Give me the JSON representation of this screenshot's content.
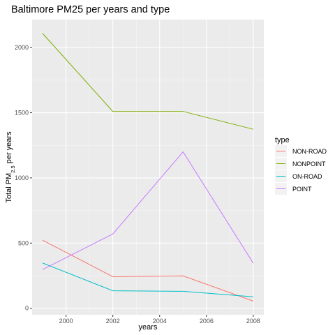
{
  "chart_data": {
    "type": "line",
    "title": "Baltimore PM25 per years and type",
    "xlabel": "years",
    "ylabel": {
      "prefix": "Total PM",
      "subscript": "2.5",
      "suffix": " per years"
    },
    "x": [
      1999,
      2002,
      2005,
      2008
    ],
    "xticks": [
      2000,
      2002,
      2004,
      2006,
      2008
    ],
    "yticks": [
      0,
      500,
      1000,
      1500,
      2000
    ],
    "xlim": [
      1998.55,
      2008.45
    ],
    "ylim": [
      -50,
      2215
    ],
    "grid": true,
    "legend_title": "type",
    "legend_position": "right",
    "series": [
      {
        "name": "NON-ROAD",
        "color": "#F8766D",
        "values": [
          522,
          242,
          248,
          55
        ]
      },
      {
        "name": "NONPOINT",
        "color": "#7CAE00",
        "values": [
          2108,
          1510,
          1510,
          1373
        ]
      },
      {
        "name": "ON-ROAD",
        "color": "#00BFC4",
        "values": [
          347,
          134,
          130,
          88
        ]
      },
      {
        "name": "POINT",
        "color": "#C77CFF",
        "values": [
          297,
          570,
          1200,
          345
        ]
      }
    ]
  }
}
